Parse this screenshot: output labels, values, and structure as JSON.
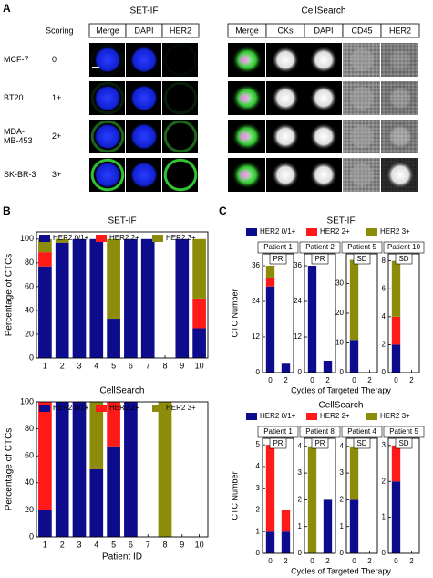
{
  "panel_a": {
    "label": "A",
    "scoring_header": "Scoring",
    "set_if_title": "SET-IF",
    "set_if_columns": [
      "Merge",
      "DAPI",
      "HER2"
    ],
    "cellsearch_title": "CellSearch",
    "cellsearch_columns": [
      "Merge",
      "CKs",
      "DAPI",
      "CD45",
      "HER2"
    ],
    "rows": [
      {
        "cell_line": [
          "MCF-7"
        ],
        "score": "0"
      },
      {
        "cell_line": [
          "BT20"
        ],
        "score": "1+"
      },
      {
        "cell_line": [
          "MDA-",
          "MB-453"
        ],
        "score": "2+"
      },
      {
        "cell_line": [
          "SK-BR-3"
        ],
        "score": "3+"
      }
    ]
  },
  "panel_b_label": "B",
  "panel_c_label": "C",
  "chart_data": [
    {
      "type": "stacked-bar",
      "title": "SET-IF",
      "y_label": "Percentage of CTCs",
      "categories": [
        "1",
        "2",
        "3",
        "4",
        "5",
        "6",
        "7",
        "8",
        "9",
        "10"
      ],
      "ylim": [
        0,
        106
      ],
      "yticks": [
        0,
        20,
        40,
        60,
        80,
        100
      ],
      "series": [
        {
          "name": "HER2 0/1+",
          "color": "#0c0c8c",
          "values": [
            77,
            97,
            100,
            100,
            33,
            100,
            100,
            0,
            100,
            25
          ]
        },
        {
          "name": "HER2 2+",
          "color": "#ff1a1a",
          "values": [
            12,
            0,
            0,
            0,
            0,
            0,
            0,
            0,
            0,
            25
          ]
        },
        {
          "name": "HER2 3+",
          "color": "#8c8c0a",
          "values": [
            11,
            3,
            0,
            0,
            67,
            0,
            0,
            0,
            0,
            50
          ]
        }
      ]
    },
    {
      "type": "stacked-bar",
      "title": "CellSearch",
      "y_label": "Percentage of CTCs",
      "x_label": "Patient ID",
      "categories": [
        "1",
        "2",
        "3",
        "4",
        "5",
        "6",
        "7",
        "8",
        "9",
        "10"
      ],
      "ylim": [
        0,
        100
      ],
      "yticks": [
        0,
        20,
        40,
        60,
        80,
        100
      ],
      "series": [
        {
          "name": "HER2 0/1+",
          "color": "#0c0c8c",
          "values": [
            20,
            100,
            100,
            50,
            67,
            100,
            0,
            0,
            0,
            0
          ]
        },
        {
          "name": "HER2 2+",
          "color": "#ff1a1a",
          "values": [
            80,
            0,
            0,
            0,
            33,
            0,
            0,
            0,
            0,
            0
          ]
        },
        {
          "name": "HER2 3+",
          "color": "#8c8c0a",
          "values": [
            0,
            0,
            0,
            50,
            0,
            0,
            0,
            100,
            0,
            0
          ]
        }
      ]
    },
    {
      "type": "stacked-bar-panels",
      "title": "SET-IF",
      "y_label": "CTC Number",
      "x_label": "Cycles of Targeted Therapy",
      "categories": [
        "0",
        "2"
      ],
      "legend": [
        {
          "name": "HER2 0/1+",
          "color": "#0c0c8c"
        },
        {
          "name": "HER2 2+",
          "color": "#ff1a1a"
        },
        {
          "name": "HER2 3+",
          "color": "#8c8c0a"
        }
      ],
      "subplots": [
        {
          "title": "Patient 1",
          "annotation": "PR",
          "ylim": [
            0,
            40
          ],
          "yticks": [
            0,
            12,
            24,
            36
          ],
          "series": [
            {
              "values": [
                29,
                3
              ]
            },
            {
              "values": [
                3,
                0
              ]
            },
            {
              "values": [
                4,
                0
              ]
            }
          ]
        },
        {
          "title": "Patient 2",
          "annotation": "PR",
          "ylim": [
            0,
            40
          ],
          "yticks": [
            0,
            12,
            24,
            36
          ],
          "series": [
            {
              "values": [
                36,
                4
              ]
            },
            {
              "values": [
                0,
                0
              ]
            },
            {
              "values": [
                0,
                0
              ]
            }
          ]
        },
        {
          "title": "Patient 5",
          "annotation": "SD",
          "ylim": [
            0,
            40
          ],
          "yticks": [
            0,
            10,
            20,
            30
          ],
          "series": [
            {
              "values": [
                11,
                0
              ]
            },
            {
              "values": [
                0,
                0
              ]
            },
            {
              "values": [
                27,
                0
              ]
            }
          ]
        },
        {
          "title": "Patient 10",
          "annotation": "SD",
          "ylim": [
            0,
            8.5
          ],
          "yticks": [
            0,
            2,
            4,
            6,
            8
          ],
          "series": [
            {
              "values": [
                2,
                0
              ]
            },
            {
              "values": [
                2,
                0
              ]
            },
            {
              "values": [
                4,
                0
              ]
            }
          ]
        }
      ]
    },
    {
      "type": "stacked-bar-panels",
      "title": "CellSearch",
      "y_label": "CTC Number",
      "x_label": "Cycles of Targeted Therapy",
      "categories": [
        "0",
        "2"
      ],
      "legend": [
        {
          "name": "HER2 0/1+",
          "color": "#0c0c8c"
        },
        {
          "name": "HER2 2+",
          "color": "#ff1a1a"
        },
        {
          "name": "HER2 3+",
          "color": "#8c8c0a"
        }
      ],
      "subplots": [
        {
          "title": "Patient 1",
          "annotation": "PR",
          "ylim": [
            0,
            5.3
          ],
          "yticks": [
            0,
            1,
            2,
            3,
            4,
            5
          ],
          "series": [
            {
              "values": [
                1,
                1
              ]
            },
            {
              "values": [
                4,
                1
              ]
            },
            {
              "values": [
                0,
                0
              ]
            }
          ]
        },
        {
          "title": "Patient 8",
          "annotation": "PR",
          "ylim": [
            0,
            4.3
          ],
          "yticks": [
            0,
            1,
            2,
            3,
            4
          ],
          "series": [
            {
              "values": [
                0,
                2
              ]
            },
            {
              "values": [
                0,
                0
              ]
            },
            {
              "values": [
                4,
                0
              ]
            }
          ]
        },
        {
          "title": "Patient 4",
          "annotation": "SD",
          "ylim": [
            0,
            4.3
          ],
          "yticks": [
            0,
            1,
            2,
            3,
            4
          ],
          "series": [
            {
              "values": [
                2,
                0
              ]
            },
            {
              "values": [
                0,
                0
              ]
            },
            {
              "values": [
                2,
                0
              ]
            }
          ]
        },
        {
          "title": "Patient 5",
          "annotation": "SD",
          "ylim": [
            0,
            3.2
          ],
          "yticks": [
            0,
            1,
            2,
            3
          ],
          "series": [
            {
              "values": [
                2,
                0
              ]
            },
            {
              "values": [
                1,
                0
              ]
            },
            {
              "values": [
                0,
                0
              ]
            }
          ]
        }
      ]
    }
  ]
}
